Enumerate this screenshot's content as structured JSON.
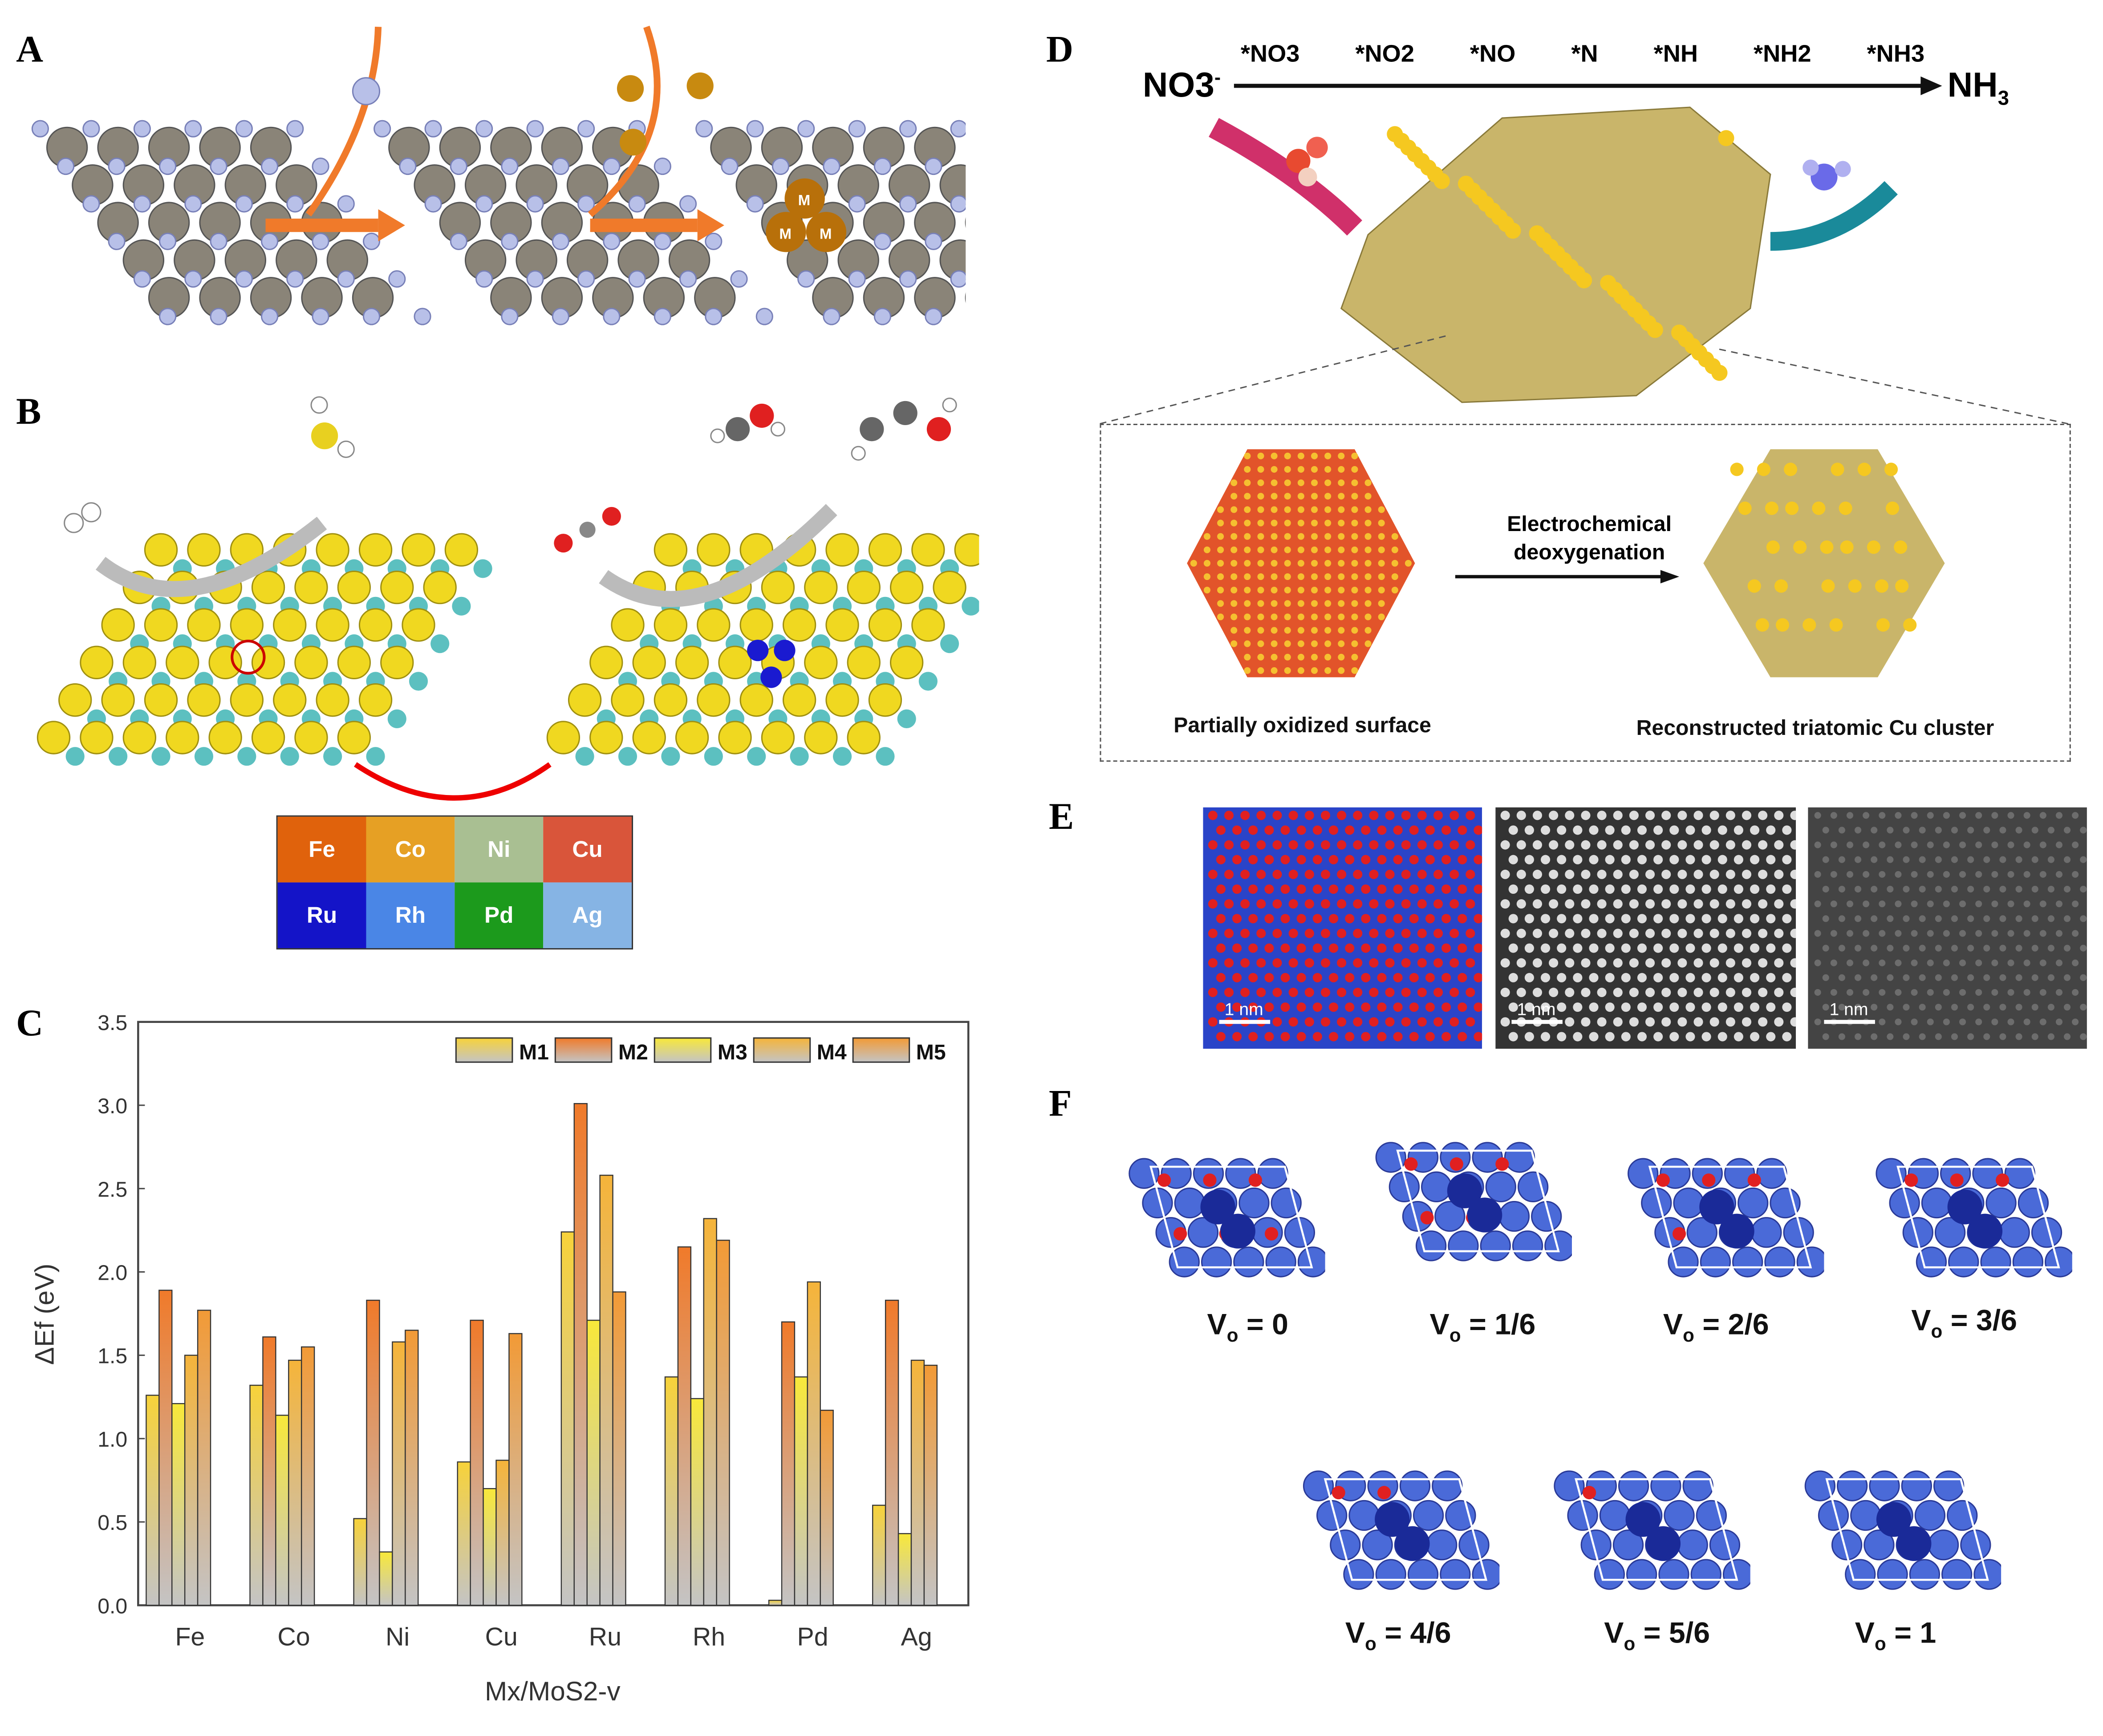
{
  "panels": {
    "a": {
      "label": "A",
      "atom_label": "M"
    },
    "b": {
      "label": "B",
      "elements": [
        {
          "symbol": "Fe",
          "color": "#e0620c"
        },
        {
          "symbol": "Co",
          "color": "#e6a024"
        },
        {
          "symbol": "Ni",
          "color": "#a9bf92"
        },
        {
          "symbol": "Cu",
          "color": "#d9553a"
        },
        {
          "symbol": "Ru",
          "color": "#1414c8"
        },
        {
          "symbol": "Rh",
          "color": "#4a86e6"
        },
        {
          "symbol": "Pd",
          "color": "#1c9a1c"
        },
        {
          "symbol": "Ag",
          "color": "#86b4e4"
        }
      ]
    },
    "c": {
      "label": "C"
    },
    "d": {
      "label": "D",
      "reactant": "NO3",
      "reactant_sup": "-",
      "product": "NH",
      "product_sub": "3",
      "intermediates": [
        "*NO3",
        "*NO2",
        "*NO",
        "*N",
        "*NH",
        "*NH2",
        "*NH3"
      ],
      "process_line1": "Electrochemical",
      "process_line2": "deoxygenation",
      "left_caption": "Partially oxidized surface",
      "right_caption": "Reconstructed triatomic Cu cluster"
    },
    "e": {
      "label": "E",
      "scale_bars": [
        "1 nm",
        "1 nm",
        "1 nm"
      ]
    },
    "f": {
      "label": "F",
      "vacancies": [
        {
          "prefix": "V",
          "sub": "o",
          "value": "= 0"
        },
        {
          "prefix": "V",
          "sub": "o",
          "value": "= 1/6"
        },
        {
          "prefix": "V",
          "sub": "o",
          "value": "= 2/6"
        },
        {
          "prefix": "V",
          "sub": "o",
          "value": "= 3/6"
        },
        {
          "prefix": "V",
          "sub": "o",
          "value": "= 4/6"
        },
        {
          "prefix": "V",
          "sub": "o",
          "value": "= 5/6"
        },
        {
          "prefix": "V",
          "sub": "o",
          "value": "= 1"
        }
      ]
    }
  },
  "chart_data": {
    "type": "bar",
    "title": "",
    "xlabel": "Mx/MoS2-v",
    "ylabel": "ΔEf (eV)",
    "ylim": [
      0,
      3.5
    ],
    "yticks": [
      "0.0",
      "0.5",
      "1.0",
      "1.5",
      "2.0",
      "2.5",
      "3.0",
      "3.5"
    ],
    "grid": false,
    "legend_position": "top-right",
    "categories": [
      "Fe",
      "Co",
      "Ni",
      "Cu",
      "Ru",
      "Rh",
      "Pd",
      "Ag"
    ],
    "series": [
      {
        "name": "M1",
        "color": "#f7d23a",
        "values": [
          1.26,
          1.32,
          0.52,
          0.86,
          2.24,
          1.37,
          0.03,
          0.6
        ]
      },
      {
        "name": "M2",
        "color": "#f07a2a",
        "values": [
          1.89,
          1.61,
          1.83,
          1.71,
          3.01,
          2.15,
          1.7,
          1.83
        ]
      },
      {
        "name": "M3",
        "color": "#f8e83a",
        "values": [
          1.21,
          1.14,
          0.32,
          0.7,
          1.71,
          1.24,
          1.37,
          0.43
        ]
      },
      {
        "name": "M4",
        "color": "#f5b43a",
        "values": [
          1.5,
          1.47,
          1.58,
          0.87,
          2.58,
          2.32,
          1.94,
          1.47
        ]
      },
      {
        "name": "M5",
        "color": "#f29a36",
        "values": [
          1.77,
          1.55,
          1.65,
          1.63,
          1.88,
          2.19,
          1.17,
          1.44
        ]
      }
    ]
  }
}
